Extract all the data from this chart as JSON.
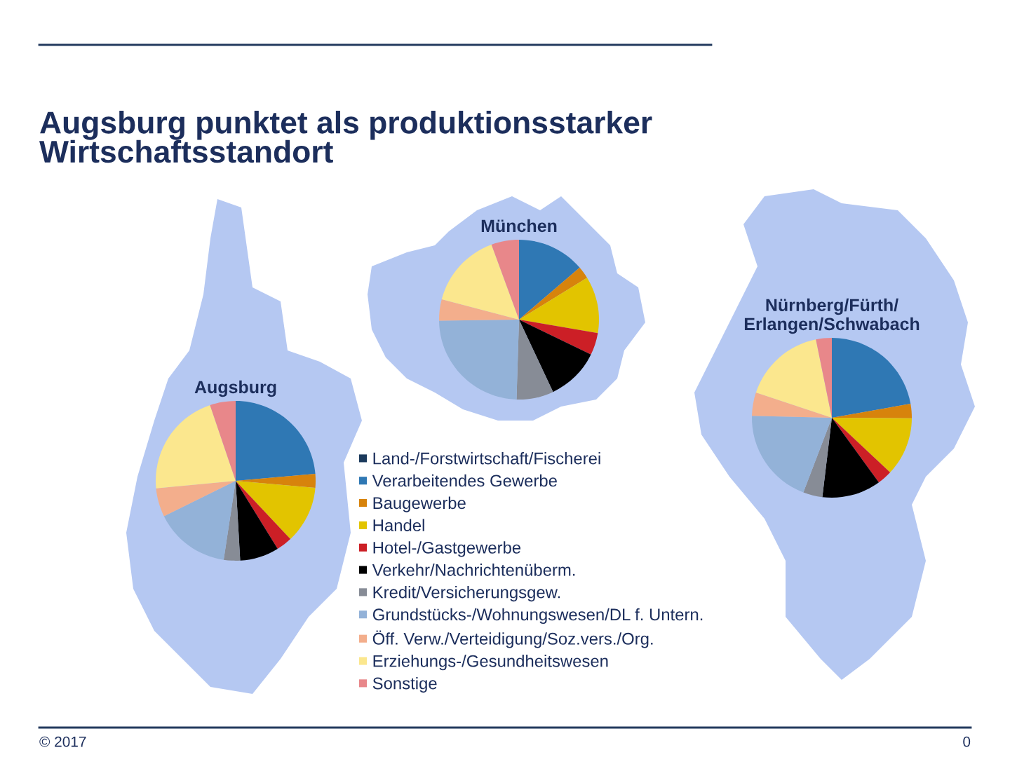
{
  "chart_data": [
    {
      "type": "other",
      "title": "Augsburg punktet als produktionsstarker\nWirtschaftsstandort",
      "annotations": [
        "© 2017",
        "0"
      ]
    },
    {
      "type": "pie",
      "title": "Augsburg",
      "legend": "right",
      "categories": [
        "Land-/Forstwirtschaft/Fischerei",
        "Verarbeitendes Gewerbe",
        "Baugewerbe",
        "Handel",
        "Hotel-/Gastgewerbe",
        "Verkehr/Nachrichtenüberm.",
        "Kredit/Versicherungsgew.",
        "Grundstücks-/Wohnungswesen/DL f. Untern.",
        "Öff. Verw./Verteidigung/Soz.vers./Org.",
        "Erziehungs-/Gesundheitswesen",
        "Sonstige"
      ],
      "values": [
        0,
        23.6,
        2.8,
        11.6,
        3.2,
        7.9,
        3.3,
        15.3,
        5.8,
        21.3,
        5.2
      ],
      "colors": [
        "#1b3a5c",
        "#2f78b4",
        "#d7830c",
        "#e2c400",
        "#cc1f26",
        "#000000",
        "#878c96",
        "#93b2d8",
        "#f3ae8c",
        "#fbe78e",
        "#e8878a"
      ]
    },
    {
      "type": "pie",
      "title": "München",
      "categories": [
        null,
        null,
        null,
        null,
        null,
        null,
        null,
        null,
        null,
        null,
        null
      ],
      "values": [
        0,
        13.7,
        2.5,
        11.5,
        4.5,
        10.8,
        7.5,
        24.3,
        4.3,
        15.3,
        5.6
      ],
      "colors": [
        "#1b3a5c",
        "#2f78b4",
        "#d7830c",
        "#e2c400",
        "#cc1f26",
        "#000000",
        "#878c96",
        "#93b2d8",
        "#f3ae8c",
        "#fbe78e",
        "#e8878a"
      ]
    },
    {
      "type": "pie",
      "title": "Nürnberg/Fürth/\nErlangen/Schwabach",
      "categories": [
        null,
        null,
        null,
        null,
        null,
        null,
        null,
        null,
        null,
        null,
        null
      ],
      "values": [
        0,
        22.2,
        2.9,
        11.9,
        3.0,
        11.9,
        3.9,
        19.6,
        4.7,
        16.7,
        3.2
      ],
      "colors": [
        "#1b3a5c",
        "#2f78b4",
        "#d7830c",
        "#e2c400",
        "#cc1f26",
        "#000000",
        "#878c96",
        "#93b2d8",
        "#f3ae8c",
        "#fbe78e",
        "#e8878a"
      ]
    }
  ]
}
